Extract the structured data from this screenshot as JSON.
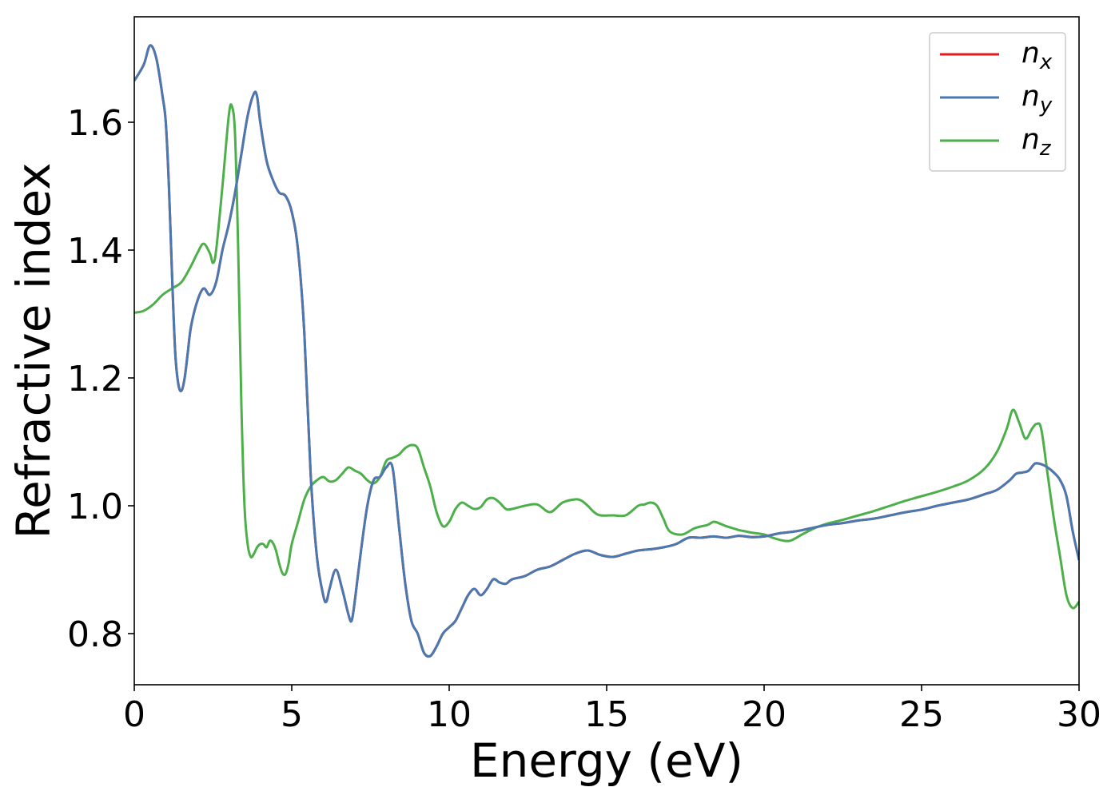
{
  "chart_data": {
    "type": "line",
    "title": "",
    "xlabel": "Energy (eV)",
    "ylabel": "Refractive index",
    "xlim": [
      0,
      30
    ],
    "ylim": [
      0.72,
      1.765
    ],
    "xticks": [
      0,
      5,
      10,
      15,
      20,
      25,
      30
    ],
    "yticks": [
      0.8,
      1.0,
      1.2,
      1.4,
      1.6
    ],
    "xtick_labels": [
      "0",
      "5",
      "10",
      "15",
      "20",
      "25",
      "30"
    ],
    "ytick_labels": [
      "0.8",
      "1.0",
      "1.2",
      "1.4",
      "1.6"
    ],
    "grid": false,
    "legend": {
      "position": "top-right",
      "entries": [
        {
          "base": "n",
          "sub": "x",
          "color": "#e41a1c"
        },
        {
          "base": "n",
          "sub": "y",
          "color": "#4a78b0"
        },
        {
          "base": "n",
          "sub": "z",
          "color": "#4daf4a"
        }
      ]
    },
    "series": [
      {
        "name": "n_x",
        "color": "#e41a1c",
        "x": [
          0,
          0.3,
          0.5,
          0.7,
          0.9,
          1.0,
          1.1,
          1.2,
          1.3,
          1.4,
          1.5,
          1.6,
          1.7,
          1.8,
          2.0,
          2.2,
          2.4,
          2.6,
          2.8,
          3.0,
          3.2,
          3.4,
          3.6,
          3.8,
          3.9,
          4.0,
          4.2,
          4.4,
          4.6,
          4.8,
          5.0,
          5.2,
          5.4,
          5.6,
          5.8,
          6.0,
          6.1,
          6.2,
          6.4,
          6.6,
          6.8,
          6.9,
          7.0,
          7.2,
          7.4,
          7.6,
          7.8,
          8.0,
          8.2,
          8.4,
          8.6,
          8.8,
          9.0,
          9.2,
          9.4,
          9.6,
          9.8,
          10.0,
          10.2,
          10.4,
          10.6,
          10.8,
          11.0,
          11.2,
          11.4,
          11.6,
          11.8,
          12.0,
          12.4,
          12.8,
          13.2,
          13.6,
          14.0,
          14.4,
          14.8,
          15.2,
          15.6,
          16.0,
          16.4,
          16.8,
          17.2,
          17.6,
          18.0,
          18.4,
          18.8,
          19.2,
          19.6,
          20.0,
          20.5,
          21.0,
          21.5,
          22.0,
          22.5,
          23.0,
          23.5,
          24.0,
          24.5,
          25.0,
          25.5,
          26.0,
          26.5,
          27.0,
          27.4,
          27.8,
          28.0,
          28.2,
          28.4,
          28.6,
          28.8,
          29.0,
          29.2,
          29.4,
          29.6,
          29.8,
          30.0
        ],
        "values": [
          1.665,
          1.69,
          1.72,
          1.7,
          1.64,
          1.6,
          1.5,
          1.36,
          1.24,
          1.19,
          1.18,
          1.2,
          1.24,
          1.28,
          1.32,
          1.34,
          1.33,
          1.35,
          1.4,
          1.44,
          1.49,
          1.55,
          1.61,
          1.645,
          1.64,
          1.6,
          1.54,
          1.51,
          1.49,
          1.485,
          1.46,
          1.4,
          1.27,
          1.05,
          0.92,
          0.86,
          0.85,
          0.87,
          0.9,
          0.87,
          0.83,
          0.82,
          0.85,
          0.93,
          1.0,
          1.04,
          1.045,
          1.06,
          1.06,
          0.97,
          0.88,
          0.82,
          0.8,
          0.77,
          0.765,
          0.78,
          0.8,
          0.81,
          0.82,
          0.84,
          0.86,
          0.87,
          0.86,
          0.87,
          0.885,
          0.88,
          0.878,
          0.885,
          0.89,
          0.9,
          0.905,
          0.915,
          0.925,
          0.93,
          0.923,
          0.92,
          0.925,
          0.93,
          0.932,
          0.935,
          0.94,
          0.95,
          0.95,
          0.952,
          0.95,
          0.953,
          0.951,
          0.952,
          0.957,
          0.96,
          0.965,
          0.97,
          0.973,
          0.977,
          0.98,
          0.985,
          0.99,
          0.994,
          1.0,
          1.005,
          1.01,
          1.018,
          1.025,
          1.04,
          1.05,
          1.052,
          1.055,
          1.066,
          1.065,
          1.06,
          1.052,
          1.04,
          1.015,
          0.96,
          0.915
        ]
      },
      {
        "name": "n_y",
        "color": "#4a78b0",
        "x": [
          0,
          0.3,
          0.5,
          0.7,
          0.9,
          1.0,
          1.1,
          1.2,
          1.3,
          1.4,
          1.5,
          1.6,
          1.7,
          1.8,
          2.0,
          2.2,
          2.4,
          2.6,
          2.8,
          3.0,
          3.2,
          3.4,
          3.6,
          3.8,
          3.9,
          4.0,
          4.2,
          4.4,
          4.6,
          4.8,
          5.0,
          5.2,
          5.4,
          5.6,
          5.8,
          6.0,
          6.1,
          6.2,
          6.4,
          6.6,
          6.8,
          6.9,
          7.0,
          7.2,
          7.4,
          7.6,
          7.8,
          8.0,
          8.2,
          8.4,
          8.6,
          8.8,
          9.0,
          9.2,
          9.4,
          9.6,
          9.8,
          10.0,
          10.2,
          10.4,
          10.6,
          10.8,
          11.0,
          11.2,
          11.4,
          11.6,
          11.8,
          12.0,
          12.4,
          12.8,
          13.2,
          13.6,
          14.0,
          14.4,
          14.8,
          15.2,
          15.6,
          16.0,
          16.4,
          16.8,
          17.2,
          17.6,
          18.0,
          18.4,
          18.8,
          19.2,
          19.6,
          20.0,
          20.5,
          21.0,
          21.5,
          22.0,
          22.5,
          23.0,
          23.5,
          24.0,
          24.5,
          25.0,
          25.5,
          26.0,
          26.5,
          27.0,
          27.4,
          27.8,
          28.0,
          28.2,
          28.4,
          28.6,
          28.8,
          29.0,
          29.2,
          29.4,
          29.6,
          29.8,
          30.0
        ],
        "values": [
          1.665,
          1.69,
          1.72,
          1.7,
          1.64,
          1.6,
          1.5,
          1.36,
          1.24,
          1.19,
          1.18,
          1.2,
          1.24,
          1.28,
          1.32,
          1.34,
          1.33,
          1.35,
          1.4,
          1.44,
          1.49,
          1.55,
          1.61,
          1.645,
          1.64,
          1.6,
          1.54,
          1.51,
          1.49,
          1.485,
          1.46,
          1.4,
          1.27,
          1.05,
          0.92,
          0.86,
          0.85,
          0.87,
          0.9,
          0.87,
          0.83,
          0.82,
          0.85,
          0.93,
          1.0,
          1.04,
          1.045,
          1.06,
          1.06,
          0.97,
          0.88,
          0.82,
          0.8,
          0.77,
          0.765,
          0.78,
          0.8,
          0.81,
          0.82,
          0.84,
          0.86,
          0.87,
          0.86,
          0.87,
          0.885,
          0.88,
          0.878,
          0.885,
          0.89,
          0.9,
          0.905,
          0.915,
          0.925,
          0.93,
          0.923,
          0.92,
          0.925,
          0.93,
          0.932,
          0.935,
          0.94,
          0.95,
          0.95,
          0.952,
          0.95,
          0.953,
          0.951,
          0.952,
          0.957,
          0.96,
          0.965,
          0.97,
          0.973,
          0.977,
          0.98,
          0.985,
          0.99,
          0.994,
          1.0,
          1.005,
          1.01,
          1.018,
          1.025,
          1.04,
          1.05,
          1.052,
          1.055,
          1.066,
          1.065,
          1.06,
          1.052,
          1.04,
          1.015,
          0.96,
          0.915
        ]
      },
      {
        "name": "n_z",
        "color": "#4daf4a",
        "x": [
          0,
          0.3,
          0.6,
          0.9,
          1.2,
          1.5,
          1.8,
          2.0,
          2.2,
          2.4,
          2.5,
          2.6,
          2.8,
          3.0,
          3.1,
          3.2,
          3.3,
          3.4,
          3.5,
          3.6,
          3.7,
          3.8,
          3.9,
          4.0,
          4.1,
          4.2,
          4.3,
          4.4,
          4.5,
          4.6,
          4.7,
          4.8,
          4.9,
          5.0,
          5.2,
          5.4,
          5.6,
          5.8,
          6.0,
          6.2,
          6.4,
          6.6,
          6.8,
          7.0,
          7.2,
          7.4,
          7.6,
          7.8,
          8.0,
          8.2,
          8.4,
          8.6,
          8.8,
          9.0,
          9.2,
          9.4,
          9.6,
          9.8,
          10.0,
          10.2,
          10.4,
          10.6,
          10.8,
          11.0,
          11.2,
          11.4,
          11.6,
          11.8,
          12.0,
          12.4,
          12.8,
          13.2,
          13.6,
          14.0,
          14.2,
          14.4,
          14.6,
          14.8,
          15.2,
          15.6,
          16.0,
          16.2,
          16.4,
          16.6,
          16.8,
          17.0,
          17.4,
          17.8,
          18.2,
          18.4,
          18.6,
          18.8,
          19.0,
          19.2,
          19.4,
          19.6,
          20.0,
          20.4,
          20.8,
          21.2,
          21.6,
          22.0,
          22.5,
          23.0,
          23.5,
          24.0,
          24.5,
          25.0,
          25.5,
          26.0,
          26.5,
          27.0,
          27.4,
          27.7,
          27.9,
          28.1,
          28.3,
          28.5,
          28.65,
          28.8,
          29.0,
          29.2,
          29.4,
          29.6,
          29.8,
          30.0
        ],
        "values": [
          1.302,
          1.305,
          1.315,
          1.33,
          1.34,
          1.35,
          1.375,
          1.395,
          1.41,
          1.395,
          1.38,
          1.4,
          1.5,
          1.61,
          1.625,
          1.58,
          1.4,
          1.16,
          1.0,
          0.94,
          0.92,
          0.925,
          0.935,
          0.94,
          0.94,
          0.935,
          0.945,
          0.942,
          0.93,
          0.91,
          0.895,
          0.893,
          0.91,
          0.94,
          0.975,
          1.01,
          1.03,
          1.04,
          1.045,
          1.038,
          1.04,
          1.05,
          1.06,
          1.055,
          1.05,
          1.04,
          1.035,
          1.045,
          1.07,
          1.075,
          1.08,
          1.09,
          1.095,
          1.09,
          1.06,
          1.03,
          0.99,
          0.968,
          0.975,
          0.995,
          1.005,
          1.0,
          0.995,
          0.998,
          1.01,
          1.012,
          1.005,
          0.995,
          0.995,
          1.0,
          1.002,
          0.99,
          1.005,
          1.01,
          1.008,
          1.0,
          0.99,
          0.985,
          0.985,
          0.985,
          1.0,
          1.002,
          1.005,
          1.0,
          0.98,
          0.96,
          0.955,
          0.965,
          0.97,
          0.975,
          0.972,
          0.968,
          0.965,
          0.962,
          0.96,
          0.958,
          0.955,
          0.948,
          0.945,
          0.955,
          0.965,
          0.972,
          0.978,
          0.985,
          0.992,
          1.0,
          1.008,
          1.015,
          1.022,
          1.03,
          1.04,
          1.058,
          1.085,
          1.12,
          1.15,
          1.13,
          1.105,
          1.12,
          1.128,
          1.12,
          1.05,
          0.98,
          0.92,
          0.86,
          0.84,
          0.85
        ]
      }
    ]
  }
}
